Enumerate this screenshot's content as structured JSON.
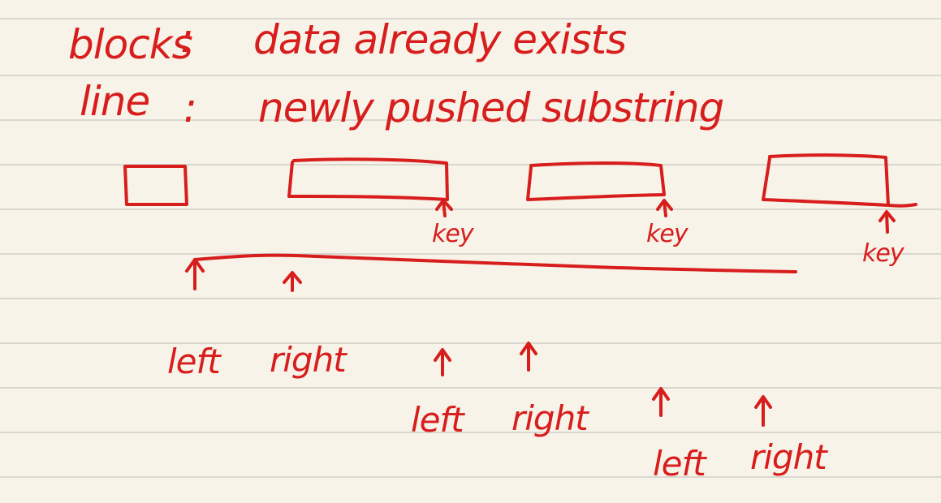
{
  "legend": {
    "blocks_term": "blocks",
    "blocks_sep": ":",
    "blocks_desc": "data already exists",
    "line_term": "line",
    "line_sep": ":",
    "line_desc": "newly pushed substring"
  },
  "labels": {
    "key_1": "key",
    "key_2": "key",
    "key_3": "key",
    "left_1": "left",
    "right_1": "right",
    "left_2": "left",
    "right_2": "right",
    "left_3": "left",
    "right_3": "right"
  },
  "colors": {
    "ink": "#d81d1d",
    "paper": "#f7f3e8",
    "ruled_line": "#d9d7cf"
  }
}
